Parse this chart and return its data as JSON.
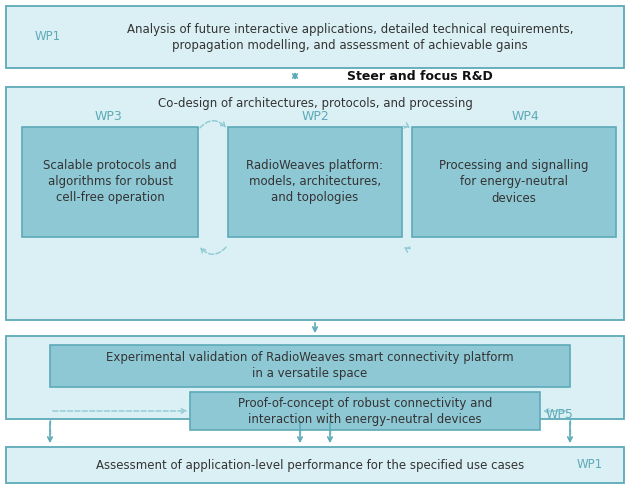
{
  "bg_color": "#ffffff",
  "border_color": "#5daab8",
  "box_fill_medium": "#8ec8d4",
  "box_fill_light": "#daf0f4",
  "text_dark": "#333333",
  "text_teal": "#5daab8",
  "arrow_color": "#8ec8d4",
  "wp1_top_label": "WP1",
  "wp1_top_text": "Analysis of future interactive applications, detailed technical requirements,\npropagation modelling, and assessment of achievable gains",
  "steer_text": "Steer and focus R&D",
  "codesign_text": "Co-design of architectures, protocols, and processing",
  "wp3_label": "WP3",
  "wp3_text": "Scalable protocols and\nalgorithms for robust\ncell-free operation",
  "wp2_label": "WP2",
  "wp2_text": "RadioWeaves platform:\nmodels, architectures,\nand topologies",
  "wp4_label": "WP4",
  "wp4_text": "Processing and signalling\nfor energy-neutral\ndevices",
  "exp_text": "Experimental validation of RadioWeaves smart connectivity platform\nin a versatile space",
  "proof_text": "Proof-of-concept of robust connectivity and\ninteraction with energy-neutral devices",
  "wp5_label": "WP5",
  "assess_text": "Assessment of application-level performance for the specified use cases",
  "wp1_bottom_label": "WP1"
}
